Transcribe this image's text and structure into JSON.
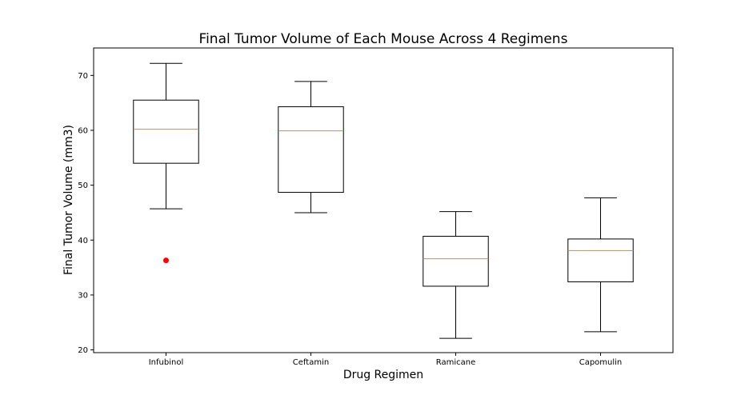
{
  "chart_data": {
    "type": "box",
    "title": "Final Tumor Volume of Each Mouse Across 4 Regimens",
    "xlabel": "Drug Regimen",
    "ylabel": "Final Tumor Volume (mm3)",
    "ylim": [
      19.5,
      75
    ],
    "yticks": [
      20,
      30,
      40,
      50,
      60,
      70
    ],
    "grid": false,
    "categories": [
      "Infubinol",
      "Ceftamin",
      "Ramicane",
      "Capomulin"
    ],
    "boxes": [
      {
        "name": "Infubinol",
        "whislo": 45.7,
        "q1": 54.0,
        "med": 60.2,
        "q3": 65.5,
        "whishi": 72.2,
        "fliers": [
          36.3
        ]
      },
      {
        "name": "Ceftamin",
        "whislo": 45.0,
        "q1": 48.7,
        "med": 59.9,
        "q3": 64.3,
        "whishi": 68.9,
        "fliers": []
      },
      {
        "name": "Ramicane",
        "whislo": 22.1,
        "q1": 31.6,
        "med": 36.6,
        "q3": 40.7,
        "whishi": 45.2,
        "fliers": []
      },
      {
        "name": "Capomulin",
        "whislo": 23.3,
        "q1": 32.4,
        "med": 38.1,
        "q3": 40.2,
        "whishi": 47.7,
        "fliers": []
      }
    ],
    "colors": {
      "box": "#000000",
      "median": "#ff7f0e",
      "flier": "#ff0000"
    }
  }
}
